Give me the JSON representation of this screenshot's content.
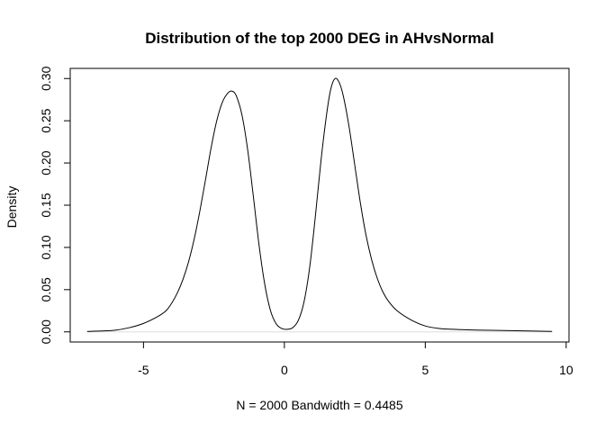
{
  "chart_data": {
    "type": "line",
    "title": "Distribution of the top 2000 DEG in AHvsNormal",
    "xlabel": "N = 2000   Bandwidth = 0.4485",
    "ylabel": "Density",
    "xlim": [
      -7.6,
      10.1
    ],
    "ylim": [
      -0.012,
      0.312
    ],
    "x_ticks": [
      -5,
      0,
      5,
      10
    ],
    "x_tick_labels": [
      "-5",
      "0",
      "5",
      "10"
    ],
    "y_ticks": [
      0.0,
      0.05,
      0.1,
      0.15,
      0.2,
      0.25,
      0.3
    ],
    "y_tick_labels": [
      "0.00",
      "0.05",
      "0.10",
      "0.15",
      "0.20",
      "0.25",
      "0.30"
    ],
    "grid": false,
    "baseline": 0,
    "series": [
      {
        "color": "#000000",
        "points": [
          [
            -7.0,
            0.0005
          ],
          [
            -6.5,
            0.001
          ],
          [
            -6.0,
            0.002
          ],
          [
            -5.5,
            0.005
          ],
          [
            -5.0,
            0.01
          ],
          [
            -4.5,
            0.018
          ],
          [
            -4.2,
            0.025
          ],
          [
            -4.0,
            0.034
          ],
          [
            -3.8,
            0.046
          ],
          [
            -3.6,
            0.062
          ],
          [
            -3.4,
            0.083
          ],
          [
            -3.2,
            0.11
          ],
          [
            -3.0,
            0.143
          ],
          [
            -2.8,
            0.18
          ],
          [
            -2.6,
            0.218
          ],
          [
            -2.4,
            0.25
          ],
          [
            -2.2,
            0.272
          ],
          [
            -2.0,
            0.283
          ],
          [
            -1.85,
            0.285
          ],
          [
            -1.7,
            0.279
          ],
          [
            -1.5,
            0.256
          ],
          [
            -1.3,
            0.215
          ],
          [
            -1.1,
            0.16
          ],
          [
            -0.9,
            0.103
          ],
          [
            -0.7,
            0.057
          ],
          [
            -0.5,
            0.026
          ],
          [
            -0.3,
            0.01
          ],
          [
            -0.1,
            0.004
          ],
          [
            0.1,
            0.003
          ],
          [
            0.3,
            0.005
          ],
          [
            0.5,
            0.014
          ],
          [
            0.7,
            0.036
          ],
          [
            0.9,
            0.077
          ],
          [
            1.1,
            0.137
          ],
          [
            1.3,
            0.203
          ],
          [
            1.5,
            0.258
          ],
          [
            1.65,
            0.288
          ],
          [
            1.8,
            0.3
          ],
          [
            1.95,
            0.295
          ],
          [
            2.1,
            0.278
          ],
          [
            2.3,
            0.242
          ],
          [
            2.5,
            0.197
          ],
          [
            2.7,
            0.152
          ],
          [
            2.9,
            0.114
          ],
          [
            3.1,
            0.085
          ],
          [
            3.3,
            0.063
          ],
          [
            3.5,
            0.047
          ],
          [
            3.7,
            0.036
          ],
          [
            4.0,
            0.025
          ],
          [
            4.5,
            0.014
          ],
          [
            5.0,
            0.007
          ],
          [
            5.5,
            0.004
          ],
          [
            6.0,
            0.003
          ],
          [
            7.0,
            0.002
          ],
          [
            8.0,
            0.0015
          ],
          [
            9.5,
            0.0005
          ]
        ]
      }
    ]
  }
}
